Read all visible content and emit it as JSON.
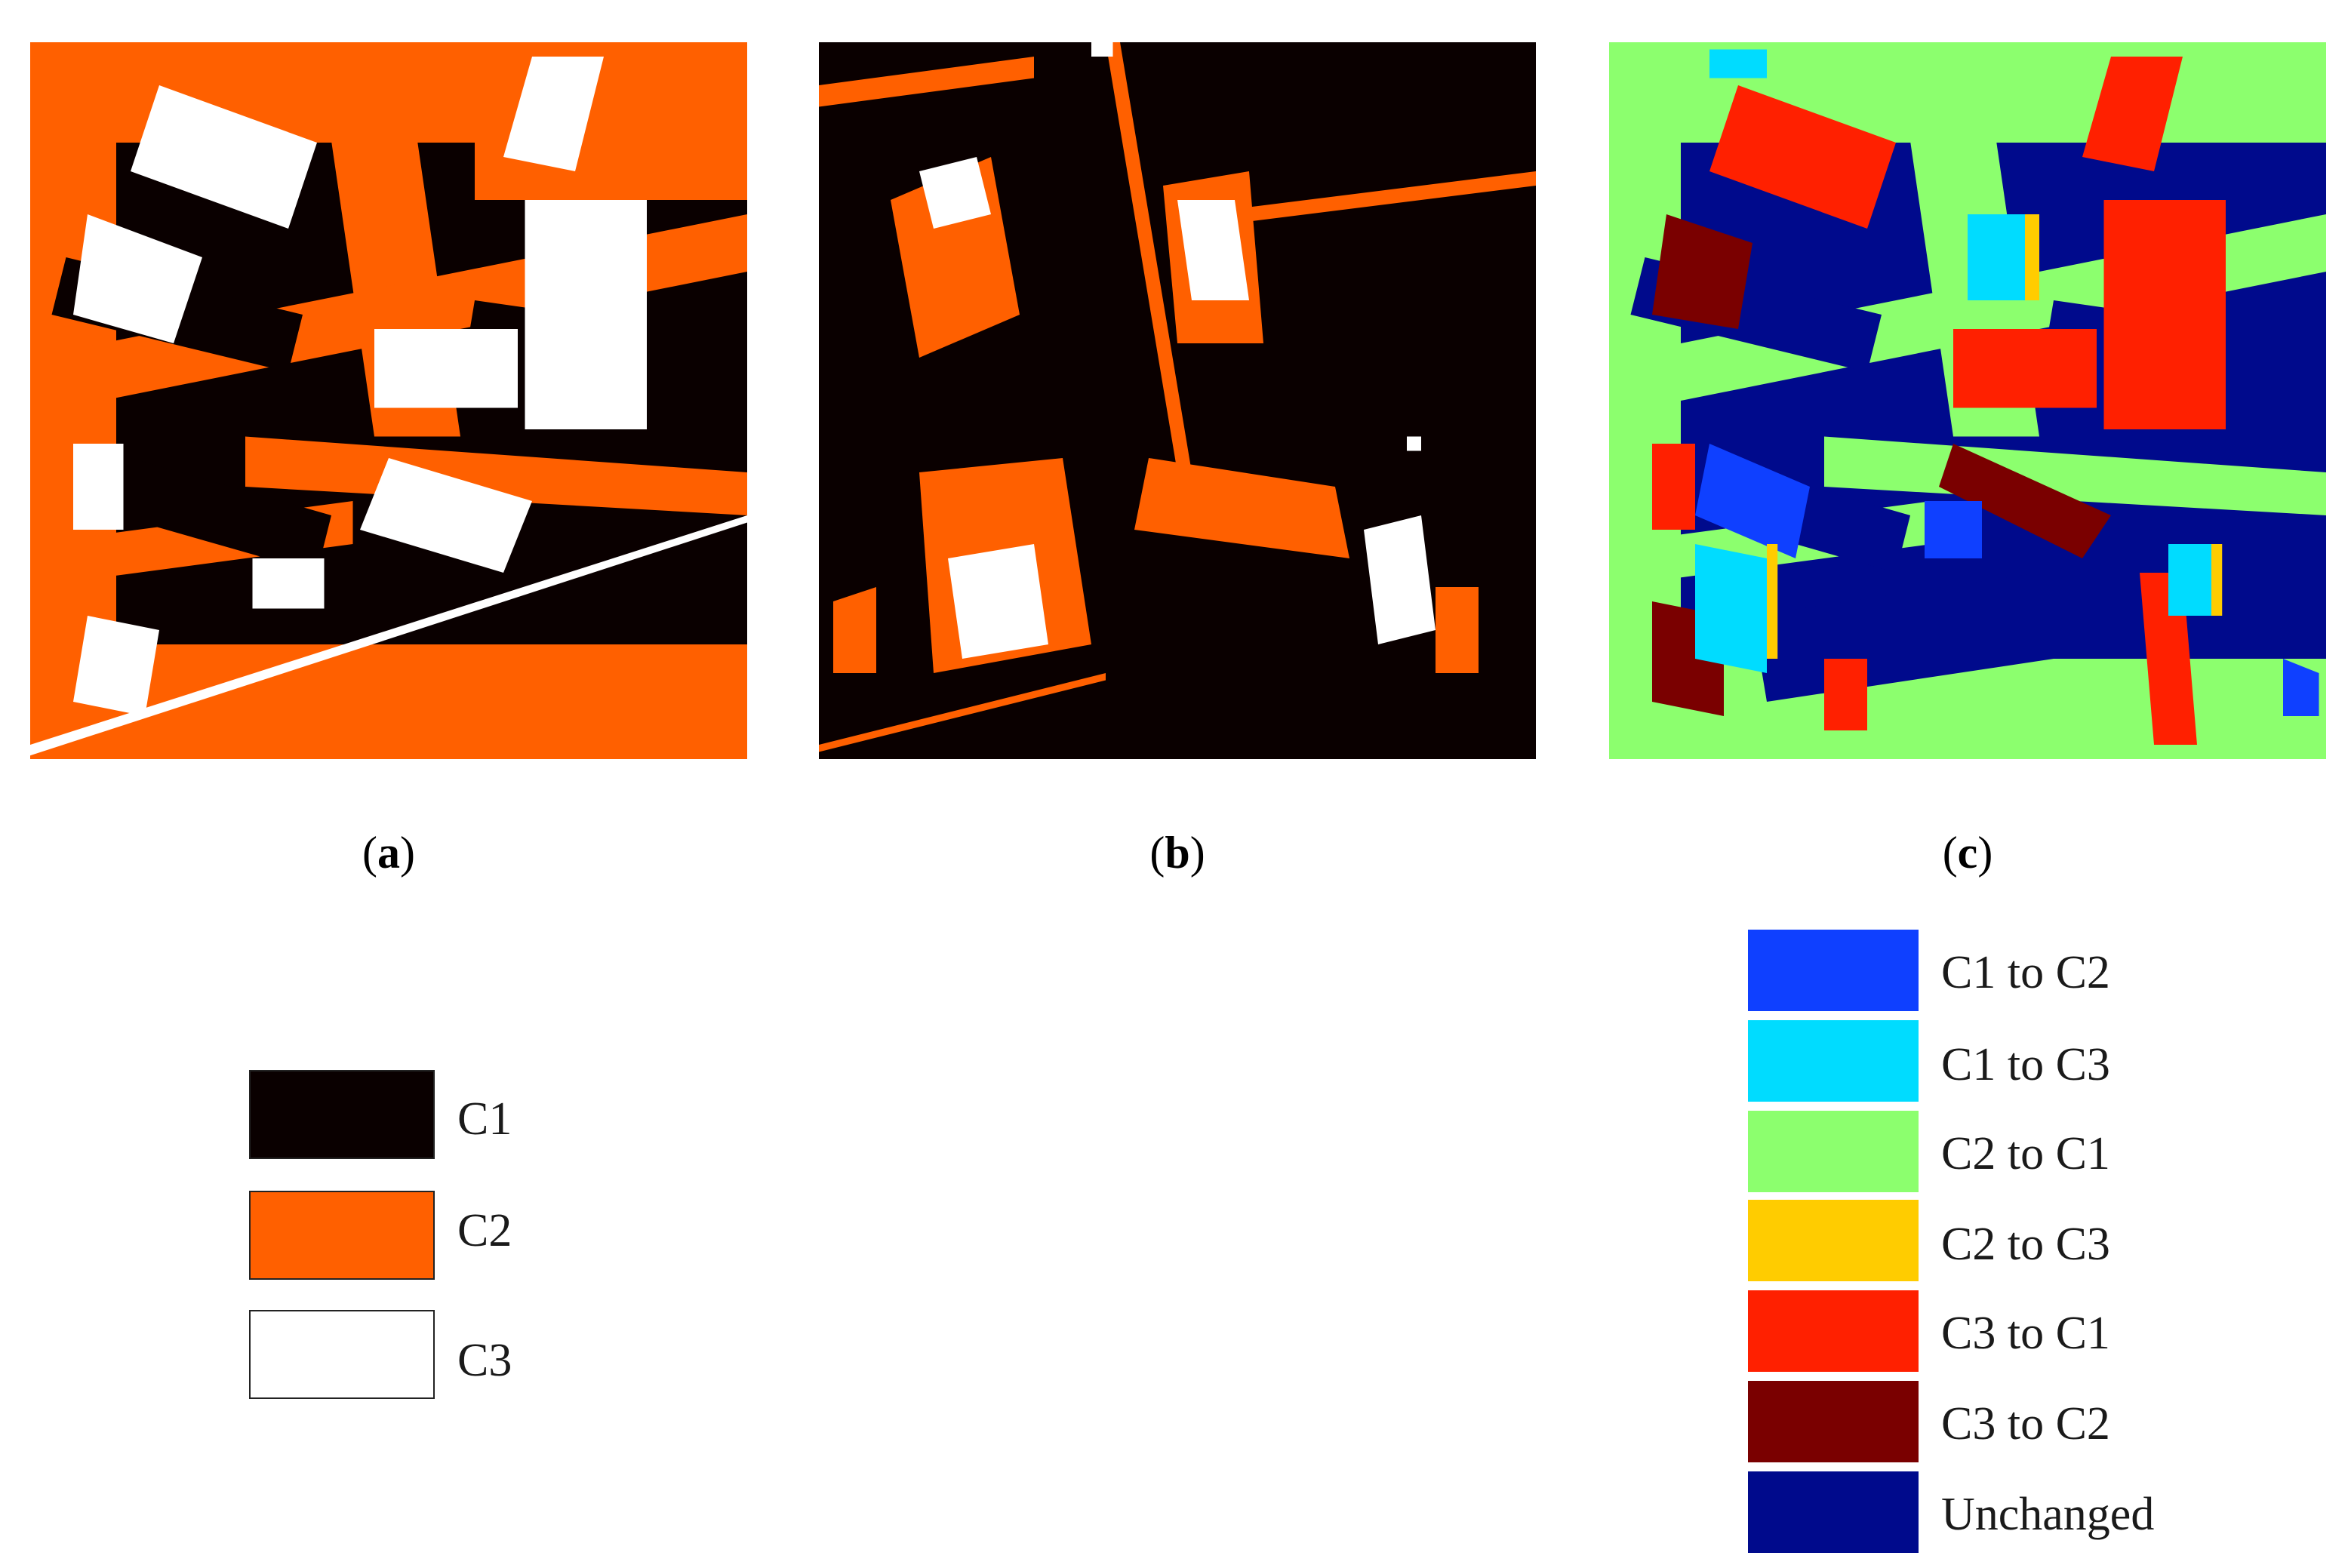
{
  "panels": [
    {
      "id": "a",
      "caption_open": "(",
      "caption_letter": "a",
      "caption_close": ")"
    },
    {
      "id": "b",
      "caption_open": "(",
      "caption_letter": "b",
      "caption_close": ")"
    },
    {
      "id": "c",
      "caption_open": "(",
      "caption_letter": "c",
      "caption_close": ")"
    }
  ],
  "class_legend": [
    {
      "label": "C1",
      "color": "#0a0000"
    },
    {
      "label": "C2",
      "color": "#ff6000"
    },
    {
      "label": "C3",
      "color": "#ffffff"
    }
  ],
  "change_legend": [
    {
      "label": "C1 to C2",
      "color": "#0f40ff"
    },
    {
      "label": "C1 to C3",
      "color": "#00dcff"
    },
    {
      "label": "C2 to C1",
      "color": "#8cff6e"
    },
    {
      "label": "C2 to C3",
      "color": "#ffcc00"
    },
    {
      "label": "C3 to C1",
      "color": "#ff2000"
    },
    {
      "label": "C3 to C2",
      "color": "#7a0000"
    },
    {
      "label": "Unchanged",
      "color": "#000a8c"
    }
  ]
}
